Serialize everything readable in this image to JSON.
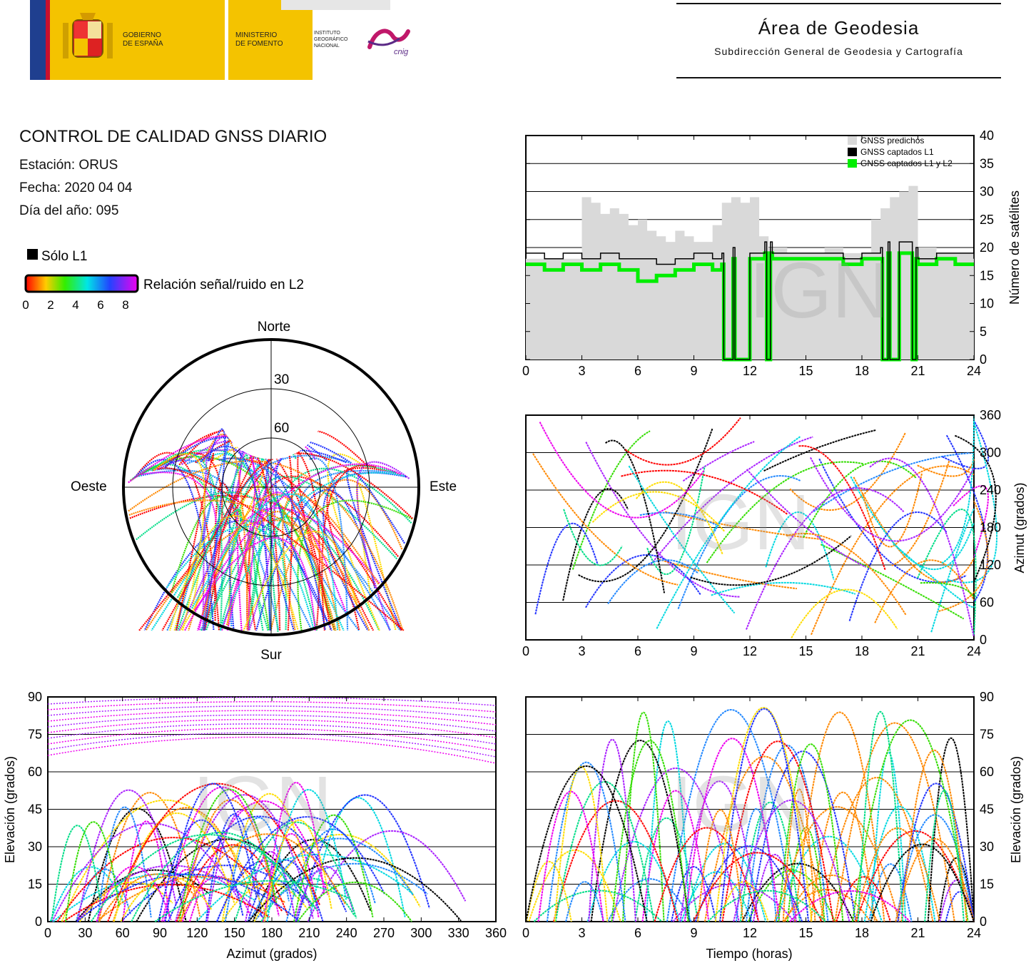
{
  "header": {
    "gov_line1": "GOBIERNO",
    "gov_line2": "DE ESPAÑA",
    "ministry_line1": "MINISTERIO",
    "ministry_line2": "DE FOMENTO",
    "institute_line1": "INSTITUTO",
    "institute_line2": "GEOGRÁFICO",
    "institute_line3": "NACIONAL",
    "cnig_mark": "cnig",
    "area_title": "Área de Geodesia",
    "area_subtitle": "Subdirección General de Geodesia y Cartografía",
    "colors": {
      "gov_yellow": "#f4c300",
      "flag_blue": "#1f3f8f",
      "flag_red": "#c8102e"
    }
  },
  "report": {
    "title": "CONTROL DE CALIDAD GNSS DIARIO",
    "station_line": "Estación: ORUS",
    "date_line": "Fecha: 2020 04 04",
    "doy_line": "Día del año: 095"
  },
  "legend": {
    "solo_l1": "Sólo L1",
    "snr_label": "Relación señal/ruido en L2",
    "scale_ticks": [
      "0",
      "2",
      "4",
      "6",
      "8"
    ]
  },
  "watermark": "IGN",
  "chart_data": [
    {
      "id": "satellite-count",
      "type": "area",
      "xlabel": "",
      "ylabel": "Número de satélites",
      "xlim": [
        0,
        24
      ],
      "ylim": [
        0,
        40
      ],
      "xticks": [
        "0",
        "3",
        "6",
        "9",
        "12",
        "15",
        "18",
        "21",
        "24"
      ],
      "yticks": [
        "0",
        "5",
        "10",
        "15",
        "20",
        "25",
        "30",
        "35",
        "40"
      ],
      "legend": [
        "GNSS predichos",
        "GNSS captados L1",
        "GNSS captados L1 y L2"
      ],
      "legend_position": "top-right",
      "series": [
        {
          "name": "GNSS predichos",
          "color": "#d9d9d9",
          "x": [
            0,
            2.8,
            3.0,
            3.5,
            4.0,
            4.5,
            5.0,
            5.5,
            6.0,
            6.5,
            7.0,
            7.5,
            8.0,
            8.5,
            9.0,
            9.5,
            10.0,
            10.5,
            11.0,
            11.5,
            12.0,
            12.5,
            13.0,
            13.5,
            14.0,
            15.0,
            16.0,
            17.0,
            18.0,
            18.5,
            19.0,
            19.5,
            20.0,
            20.5,
            21.0,
            22.0,
            23.0,
            24.0
          ],
          "values": [
            18,
            18,
            29,
            28,
            26,
            27,
            26,
            24,
            25,
            23,
            22,
            21,
            23,
            22,
            21,
            21,
            24,
            28,
            29,
            28,
            29,
            22,
            20,
            20,
            19,
            19,
            20,
            19,
            19,
            25,
            27,
            29,
            30,
            31,
            20,
            19,
            19,
            18
          ]
        },
        {
          "name": "GNSS captados L1",
          "color": "#000000",
          "x": [
            0,
            1,
            2,
            3,
            4,
            5,
            6,
            7,
            8,
            9,
            10,
            10.5,
            10.6,
            11.1,
            11.2,
            12,
            12.8,
            12.9,
            13.1,
            13.2,
            14,
            15,
            16,
            17,
            18,
            19.0,
            19.1,
            19.4,
            19.5,
            20.0,
            20.6,
            20.7,
            20.9,
            21.0,
            22,
            23,
            24
          ],
          "values": [
            19,
            18,
            19,
            18,
            19,
            18,
            18,
            17,
            18,
            19,
            18,
            19,
            0,
            20,
            0,
            19,
            21,
            0,
            21,
            19,
            19,
            19,
            19,
            18,
            19,
            20,
            0,
            21,
            0,
            21,
            21,
            0,
            20,
            18,
            19,
            19,
            18
          ]
        },
        {
          "name": "GNSS captados L1 y L2",
          "color": "#00ee00",
          "x": [
            0,
            1,
            2,
            3,
            4,
            5,
            6,
            7,
            8,
            9,
            10,
            10.5,
            10.6,
            11.1,
            11.2,
            12,
            12.8,
            12.9,
            13.1,
            13.2,
            14,
            15,
            16,
            17,
            18,
            19.0,
            19.1,
            19.4,
            19.5,
            20.0,
            20.6,
            20.7,
            20.9,
            21.0,
            22,
            23,
            24
          ],
          "values": [
            17,
            16,
            17,
            16,
            17,
            16,
            14,
            15,
            16,
            17,
            16,
            17,
            0,
            18,
            0,
            18,
            19,
            0,
            19,
            18,
            18,
            18,
            18,
            17,
            18,
            18,
            0,
            19,
            0,
            19,
            19,
            0,
            18,
            17,
            18,
            17,
            17
          ]
        }
      ]
    },
    {
      "id": "skyplot",
      "type": "scatter",
      "title": "",
      "directions": {
        "north": "Norte",
        "south": "Sur",
        "east": "Este",
        "west": "Oeste"
      },
      "elevation_rings": [
        "30",
        "60"
      ]
    },
    {
      "id": "azimuth-vs-time",
      "type": "scatter",
      "xlabel": "",
      "ylabel": "Azimut (grados)",
      "xlim": [
        0,
        24
      ],
      "ylim": [
        0,
        360
      ],
      "xticks": [
        "0",
        "3",
        "6",
        "9",
        "12",
        "15",
        "18",
        "21",
        "24"
      ],
      "yticks": [
        "0",
        "60",
        "120",
        "180",
        "240",
        "300",
        "360"
      ]
    },
    {
      "id": "elevation-vs-azimuth",
      "type": "scatter",
      "xlabel": "Azimut (grados)",
      "ylabel": "Elevación (grados)",
      "xlim": [
        0,
        360
      ],
      "ylim": [
        0,
        90
      ],
      "xticks": [
        "0",
        "30",
        "60",
        "90",
        "120",
        "150",
        "180",
        "210",
        "240",
        "270",
        "300",
        "330",
        "360"
      ],
      "yticks": [
        "0",
        "15",
        "30",
        "45",
        "60",
        "75",
        "90"
      ]
    },
    {
      "id": "elevation-vs-time",
      "type": "scatter",
      "xlabel": "Tiempo (horas)",
      "ylabel": "Elevación (grados)",
      "xlim": [
        0,
        24
      ],
      "ylim": [
        0,
        90
      ],
      "xticks": [
        "0",
        "3",
        "6",
        "9",
        "12",
        "15",
        "18",
        "21",
        "24"
      ],
      "yticks": [
        "0",
        "15",
        "30",
        "45",
        "60",
        "75",
        "90"
      ]
    }
  ]
}
